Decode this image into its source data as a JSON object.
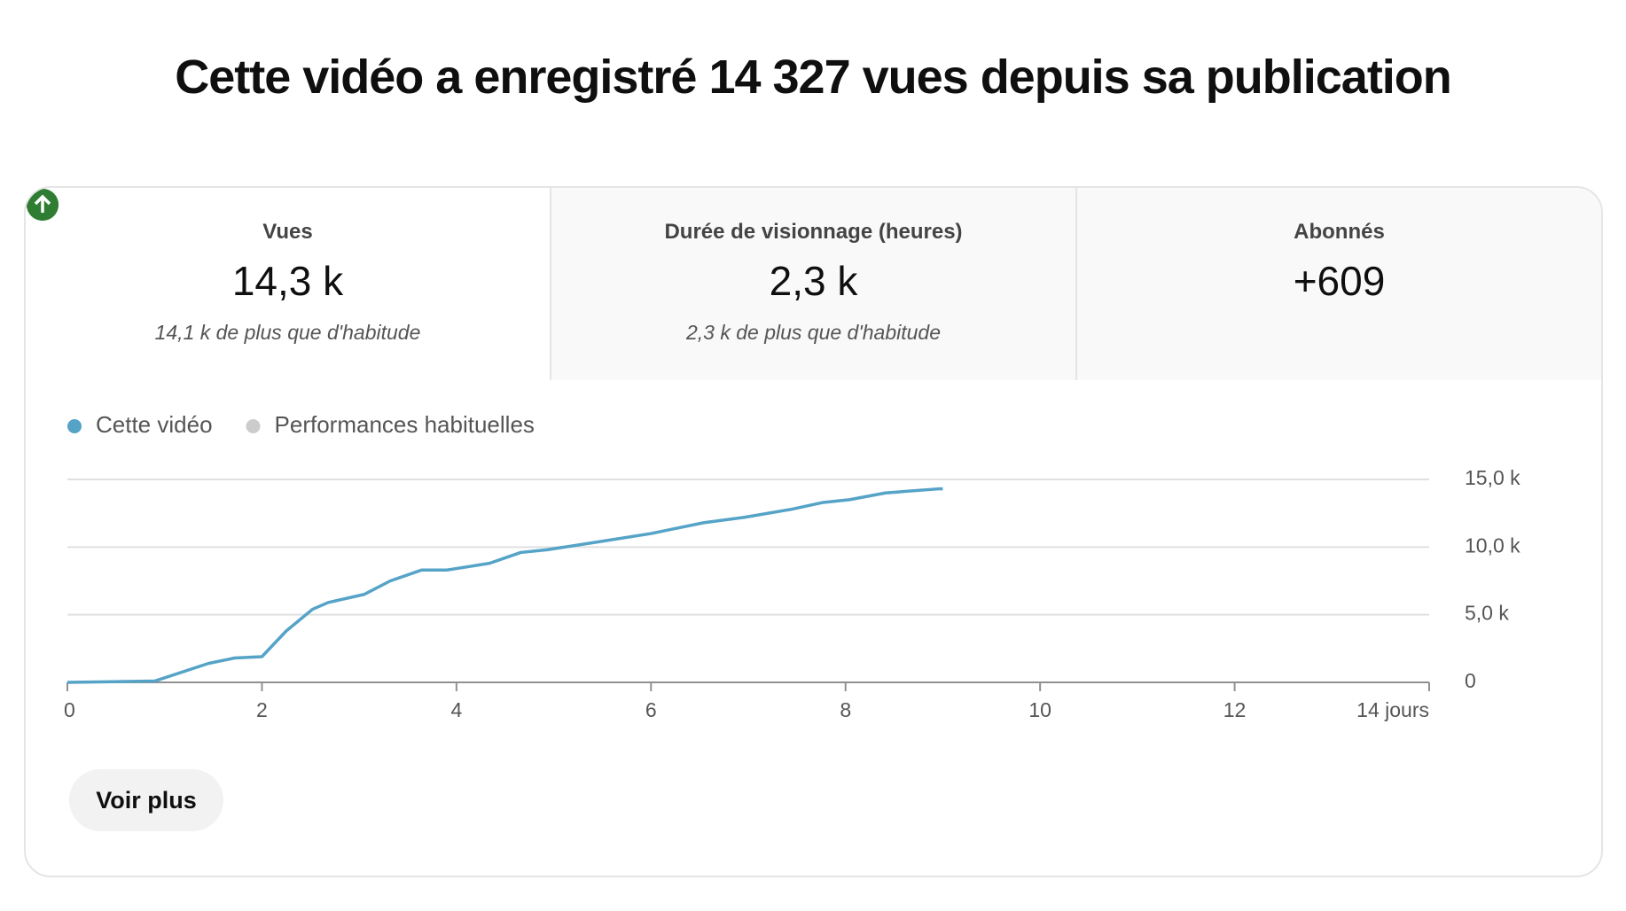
{
  "header": {
    "title": "Cette vidéo a enregistré 14 327 vues depuis sa publication"
  },
  "tabs": [
    {
      "label": "Vues",
      "value": "14,3 k",
      "trend": "up",
      "note": "14,1 k de plus que d'habitude",
      "selected": true
    },
    {
      "label": "Durée de visionnage (heures)",
      "value": "2,3 k",
      "trend": "up",
      "note": "2,3 k de plus que d'habitude",
      "selected": false
    },
    {
      "label": "Abonnés",
      "value": "+609",
      "selected": false
    }
  ],
  "chart_data": {
    "type": "line",
    "legend": [
      {
        "name": "Cette vidéo",
        "color": "#55a3c7"
      },
      {
        "name": "Performances habituelles",
        "color": "#cccccc"
      }
    ],
    "x": [
      0,
      0.9,
      1.45,
      1.72,
      2.0,
      2.25,
      2.52,
      2.68,
      3.05,
      3.32,
      3.64,
      3.9,
      4.34,
      4.66,
      4.93,
      5.47,
      6.0,
      6.54,
      6.96,
      7.45,
      7.77,
      8.04,
      8.41,
      8.95,
      9.0
    ],
    "series": [
      {
        "name": "Cette vidéo",
        "color": "#55a3c7",
        "values": [
          0,
          100,
          1400,
          1800,
          1900,
          3800,
          5400,
          5900,
          6500,
          7500,
          8300,
          8300,
          8800,
          9600,
          9800,
          10400,
          11000,
          11800,
          12200,
          12800,
          13300,
          13500,
          14000,
          14300,
          14300
        ]
      }
    ],
    "xlim": [
      0,
      14
    ],
    "xticks": [
      0,
      2,
      4,
      6,
      8,
      10,
      12,
      {
        "value": 14,
        "label": "14 jours"
      }
    ],
    "ylim": [
      0,
      15000
    ],
    "yticks": [
      0,
      {
        "value": 5000,
        "label": "5,0 k"
      },
      {
        "value": 10000,
        "label": "10,0 k"
      },
      {
        "value": 15000,
        "label": "15,0 k"
      }
    ],
    "grid": true
  },
  "button": {
    "label": "Voir plus"
  }
}
